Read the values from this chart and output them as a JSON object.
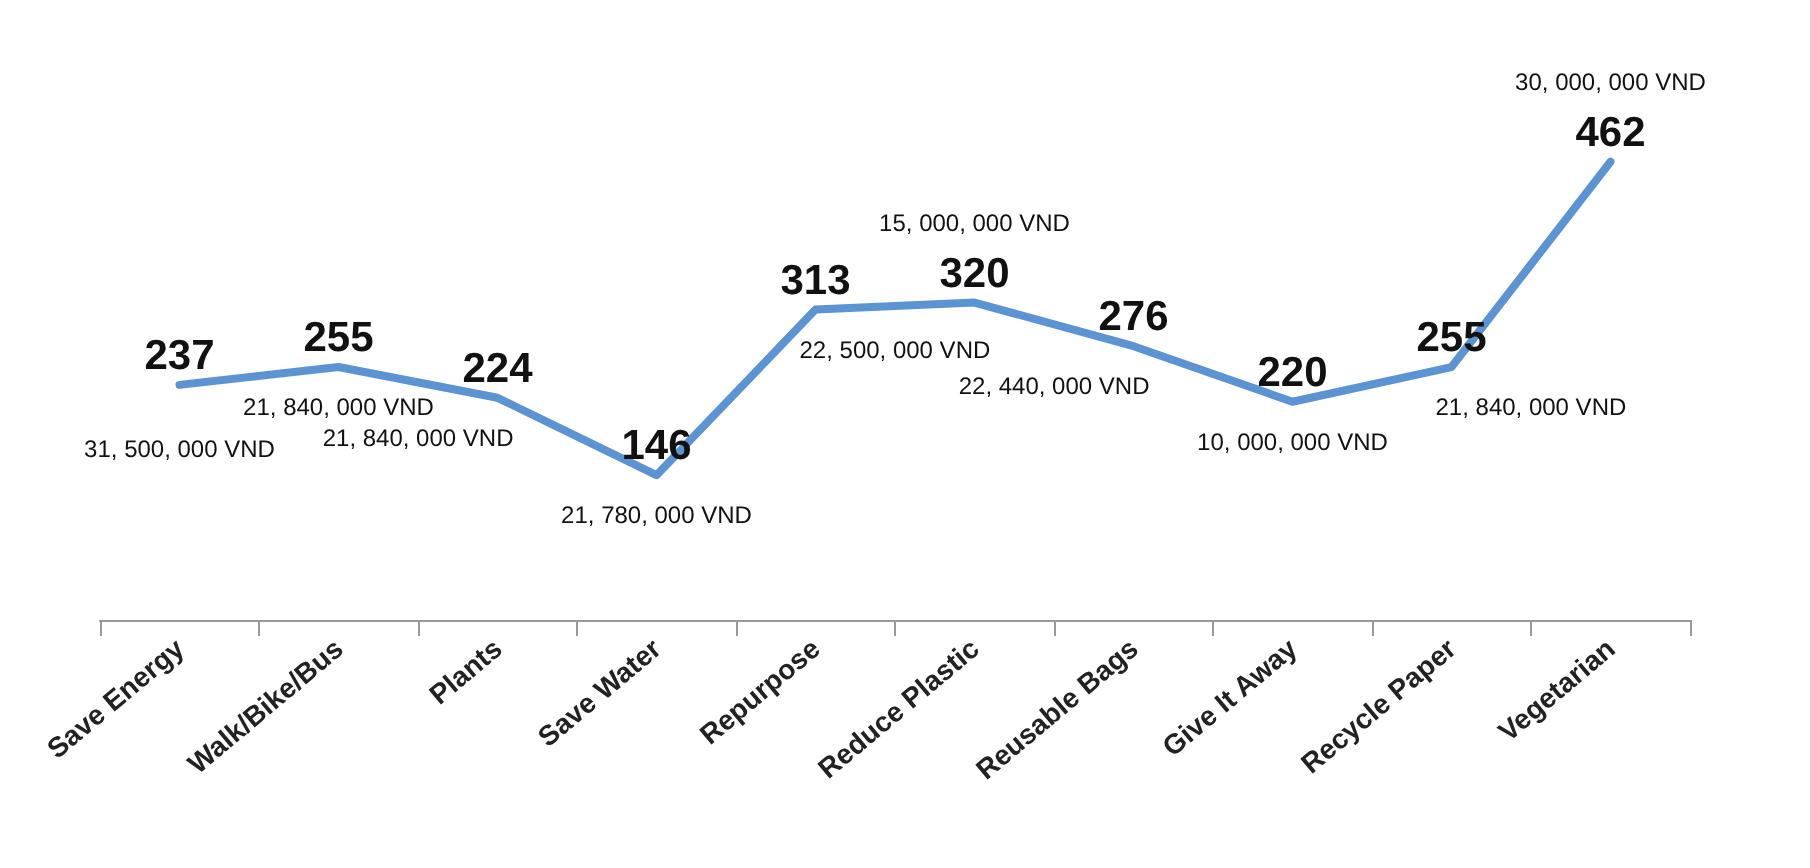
{
  "chart_data": {
    "type": "line",
    "categories": [
      "Save Energy",
      "Walk/Bike/Bus",
      "Plants",
      "Save Water",
      "Repurpose",
      "Reduce Plastic",
      "Reusable Bags",
      "Give It Away",
      "Recycle Paper",
      "Vegetarian"
    ],
    "series": [
      {
        "color": "#5b93d3",
        "values": [
          237,
          255,
          224,
          146,
          313,
          320,
          276,
          220,
          255,
          462
        ]
      }
    ],
    "data_labels": true,
    "marker": "none",
    "grid": false,
    "annotations": [
      {
        "text": "31, 500, 000 VND",
        "x": "Save Energy",
        "y": 237
      },
      {
        "text": "21, 840, 000 VND",
        "x": "Walk/Bike/Bus",
        "y": 255
      },
      {
        "text": "21, 840, 000 VND",
        "x": "Plants",
        "y": 224
      },
      {
        "text": "21, 780, 000 VND",
        "x": "Save Water",
        "y": 146
      },
      {
        "text": "22, 500, 000 VND",
        "x": "Repurpose",
        "y": 313
      },
      {
        "text": "15, 000, 000 VND",
        "x": "Reduce Plastic",
        "y": 320
      },
      {
        "text": "22, 440, 000 VND",
        "x": "Reusable Bags",
        "y": 276
      },
      {
        "text": "10, 000, 000 VND",
        "x": "Give It Away",
        "y": 220
      },
      {
        "text": "21, 840, 000 VND",
        "x": "Recycle Paper",
        "y": 255
      },
      {
        "text": "30, 000, 000 VND",
        "x": "Vegetarian",
        "y": 462
      }
    ]
  }
}
